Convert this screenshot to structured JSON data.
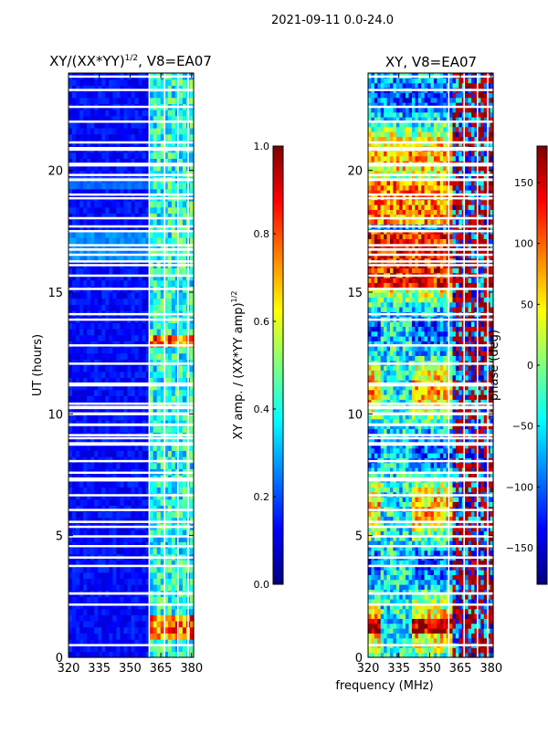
{
  "suptitle": "2021-09-11 0.0-24.0",
  "shared_xlabel": "frequency (MHz)",
  "colors": {
    "jet": [
      "#00007f",
      "#0000ff",
      "#007fff",
      "#00ffff",
      "#7fff7f",
      "#ffff00",
      "#ff7f00",
      "#ff0000",
      "#7f0000"
    ],
    "gap": "#ffffff",
    "frame": "#000000"
  },
  "chart_data": [
    {
      "type": "heatmap",
      "title_main": "XY/(XX*YY)",
      "title_exp": "1/2",
      "title_suffix": ", V8=EA07",
      "xlabel": "",
      "ylabel": "UT (hours)",
      "xlim": [
        320,
        381
      ],
      "ylim": [
        0,
        24
      ],
      "xticks": [
        320,
        335,
        350,
        365,
        380
      ],
      "yticks": [
        0,
        5,
        10,
        15,
        20
      ],
      "colorbar": {
        "label_main": "XY amp. / (XX*YY amp)",
        "label_exp": "1/2",
        "range": [
          0.0,
          1.0
        ],
        "ticks": [
          "0.0",
          "0.2",
          "0.4",
          "0.6",
          "0.8",
          "1.0"
        ],
        "tick_values": [
          0.0,
          0.2,
          0.4,
          0.6,
          0.8,
          1.0
        ]
      }
    },
    {
      "type": "heatmap",
      "title": "XY, V8=EA07",
      "xlabel": "",
      "ylabel": "",
      "xlim": [
        320,
        381
      ],
      "ylim": [
        0,
        24
      ],
      "xticks": [
        320,
        335,
        350,
        365,
        380
      ],
      "yticks": [
        0,
        5,
        10,
        15,
        20
      ],
      "colorbar": {
        "label": "phase (deg)",
        "range": [
          -180,
          180
        ],
        "ticks": [
          "150",
          "100",
          "50",
          "0",
          "−50",
          "−100",
          "−150"
        ],
        "tick_values": [
          150,
          100,
          50,
          0,
          -50,
          -100,
          -150
        ]
      }
    }
  ]
}
